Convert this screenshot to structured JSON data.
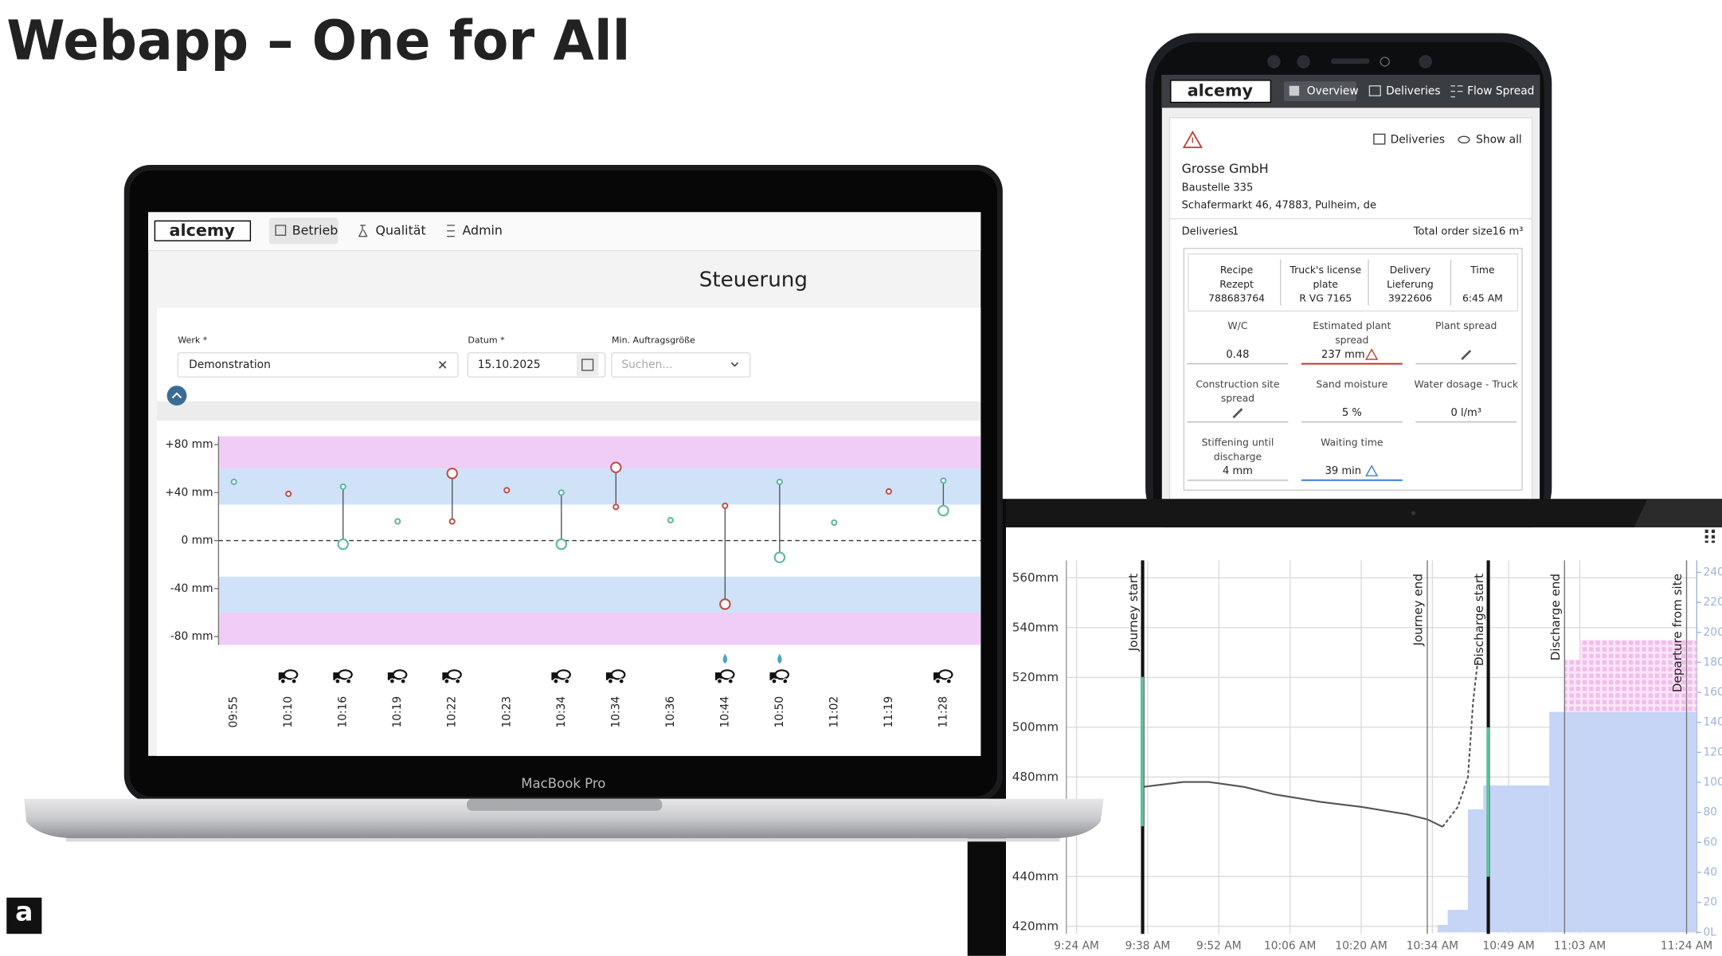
{
  "slide": {
    "title": "Webapp – One for All",
    "logo": "a"
  },
  "laptop": {
    "device": "MacBook Pro",
    "logo": "alcemy",
    "nav": [
      "Betrieb",
      "Qualität",
      "Admin"
    ],
    "page_title": "Steuerung",
    "filters": [
      {
        "label": "Werk *",
        "value": "Demonstration"
      },
      {
        "label": "Datum *",
        "value": "15.10.2025"
      },
      {
        "label": "Min. Auftragsgröße",
        "value": "Suchen..."
      }
    ]
  },
  "phone": {
    "logo": "alcemy",
    "nav": [
      "Overview",
      "Deliveries",
      "Flow Spread"
    ],
    "actions": [
      "Deliveries",
      "Show all"
    ],
    "customer": "Grosse GmbH",
    "site": "Baustelle 335",
    "address": "Schafermarkt 46, 47883, Pulheim, de",
    "deliveries_label": "Deliveries",
    "deliveries_count": 1,
    "order_label": "Total order size",
    "order_size": "16 m³",
    "header": [
      {
        "lines": [
          "Recipe",
          "Rezept"
        ],
        "value": "788683764"
      },
      {
        "lines": [
          "Truck's license",
          "plate"
        ],
        "value": "R VG 7165"
      },
      {
        "lines": [
          "Delivery",
          "Lieferung"
        ],
        "value": "3922606"
      },
      {
        "lines": [
          "Time"
        ],
        "value": "6:45 AM"
      }
    ],
    "fields": [
      {
        "lines": [
          "W/C"
        ],
        "value": "0.48"
      },
      {
        "lines": [
          "Estimated plant",
          "spread"
        ],
        "value": "237 mm",
        "alert": "#c0392b"
      },
      {
        "lines": [
          "Plant spread"
        ]
      },
      {
        "lines": [
          "Construction site",
          "spread"
        ]
      },
      {
        "lines": [
          "Sand moisture"
        ],
        "value": "5 %"
      },
      {
        "lines": [
          "Water dosage - Truck"
        ],
        "value": "0 l/m³"
      },
      {
        "lines": [
          "Stiffening until",
          "discharge"
        ],
        "value": "4 mm"
      },
      {
        "lines": [
          "Waiting time"
        ],
        "value": "39 min",
        "alert": "#3b7dd8"
      }
    ]
  },
  "chart_data": [
    {
      "type": "dot",
      "categories": [
        "09:55",
        "10:10",
        "10:16",
        "10:19",
        "10:22",
        "10:23",
        "10:34",
        "10:34",
        "10:36",
        "10:44",
        "10:50",
        "11:02",
        "11:19",
        "11:28"
      ],
      "ylim": [
        -87,
        87
      ],
      "yticks": [
        {
          "value": 80,
          "label": "+80 mm"
        },
        {
          "value": 40,
          "label": "+40 mm"
        },
        {
          "value": 0,
          "label": "0 mm"
        },
        {
          "value": -40,
          "label": "-40 mm"
        },
        {
          "value": -80,
          "label": "-80 mm"
        }
      ],
      "reference_line": 0,
      "bands": [
        {
          "range": [
            60,
            87
          ],
          "color": "#f0cdf6"
        },
        {
          "range": [
            30,
            60
          ],
          "color": "#cfe2f8"
        },
        {
          "range": [
            -60,
            -30
          ],
          "color": "#cfe2f8"
        },
        {
          "range": [
            -87,
            -60
          ],
          "color": "#f0cdf6"
        }
      ],
      "series": [
        {
          "color": "#5fb8a0",
          "size": "small",
          "values": [
            49,
            null,
            45,
            16,
            null,
            null,
            40,
            null,
            17,
            null,
            49,
            15,
            null,
            50
          ]
        },
        {
          "color": "#c0504d",
          "size": "small",
          "values": [
            null,
            39,
            null,
            null,
            16,
            42,
            null,
            28,
            null,
            29,
            null,
            null,
            41,
            null
          ]
        },
        {
          "color": "#5fb8a0",
          "size": "large",
          "values": [
            null,
            null,
            -3,
            null,
            null,
            null,
            -3,
            null,
            null,
            null,
            -14,
            null,
            null,
            25
          ]
        },
        {
          "color": "#c0504d",
          "size": "large",
          "values": [
            null,
            null,
            null,
            null,
            56,
            null,
            null,
            61,
            null,
            -53,
            null,
            null,
            null,
            null
          ]
        }
      ]
    },
    {
      "type": "combo",
      "xlim": [
        562,
        686
      ],
      "xticks": [
        {
          "value": 564,
          "label": "9:24 AM"
        },
        {
          "value": 578,
          "label": "9:38 AM"
        },
        {
          "value": 592,
          "label": "9:52 AM"
        },
        {
          "value": 606,
          "label": "10:06 AM"
        },
        {
          "value": 620,
          "label": "10:20 AM"
        },
        {
          "value": 634,
          "label": "10:34 AM"
        },
        {
          "value": 649,
          "label": "10:49 AM"
        },
        {
          "value": 663,
          "label": "11:03 AM"
        },
        {
          "value": 684,
          "label": "11:24 AM"
        }
      ],
      "ylim": [
        417,
        567
      ],
      "yticks": [
        {
          "value": 420,
          "label": "420mm"
        },
        {
          "value": 440,
          "label": "440mm"
        },
        {
          "value": 480,
          "label": "480mm"
        },
        {
          "value": 500,
          "label": "500mm"
        },
        {
          "value": 520,
          "label": "520mm"
        },
        {
          "value": 540,
          "label": "540mm"
        },
        {
          "value": 560,
          "label": "560mm"
        }
      ],
      "y2lim": [
        -1,
        248
      ],
      "y2ticks": [
        {
          "value": 0,
          "label": "0L"
        },
        20,
        40,
        60,
        80,
        100,
        120,
        140,
        160,
        180,
        200,
        220,
        240
      ],
      "grid": true,
      "events": [
        {
          "label": "Journey start",
          "x": 577,
          "bold": true
        },
        {
          "label": "Journey end",
          "x": 633
        },
        {
          "label": "Discharge start",
          "x": 645,
          "bold": true
        },
        {
          "label": "Discharge end",
          "x": 660
        },
        {
          "label": "Departure from site",
          "x": 684
        }
      ],
      "series": [
        {
          "type": "step-area",
          "axis": "y2",
          "color": "#c6d4f6",
          "bins": [
            635,
            637,
            641,
            644,
            657,
            686
          ],
          "values": [
            5,
            15,
            82,
            98,
            147
          ]
        },
        {
          "type": "step-area",
          "axis": "y2",
          "stacked": true,
          "color": "#f0b8ec",
          "bins": [
            660,
            663,
            686
          ],
          "values": [
            35,
            48
          ]
        },
        {
          "type": "line",
          "color": "#555555",
          "x": [
            577,
            585,
            590,
            597,
            603,
            612,
            620,
            629,
            633,
            636
          ],
          "values": [
            476,
            478,
            478,
            476,
            473,
            470,
            468,
            465,
            463,
            460
          ]
        },
        {
          "type": "line",
          "color": "#555555",
          "dashed": true,
          "x": [
            636,
            639,
            641,
            642,
            643
          ],
          "values": [
            460,
            468,
            480,
            510,
            528
          ]
        }
      ]
    }
  ]
}
